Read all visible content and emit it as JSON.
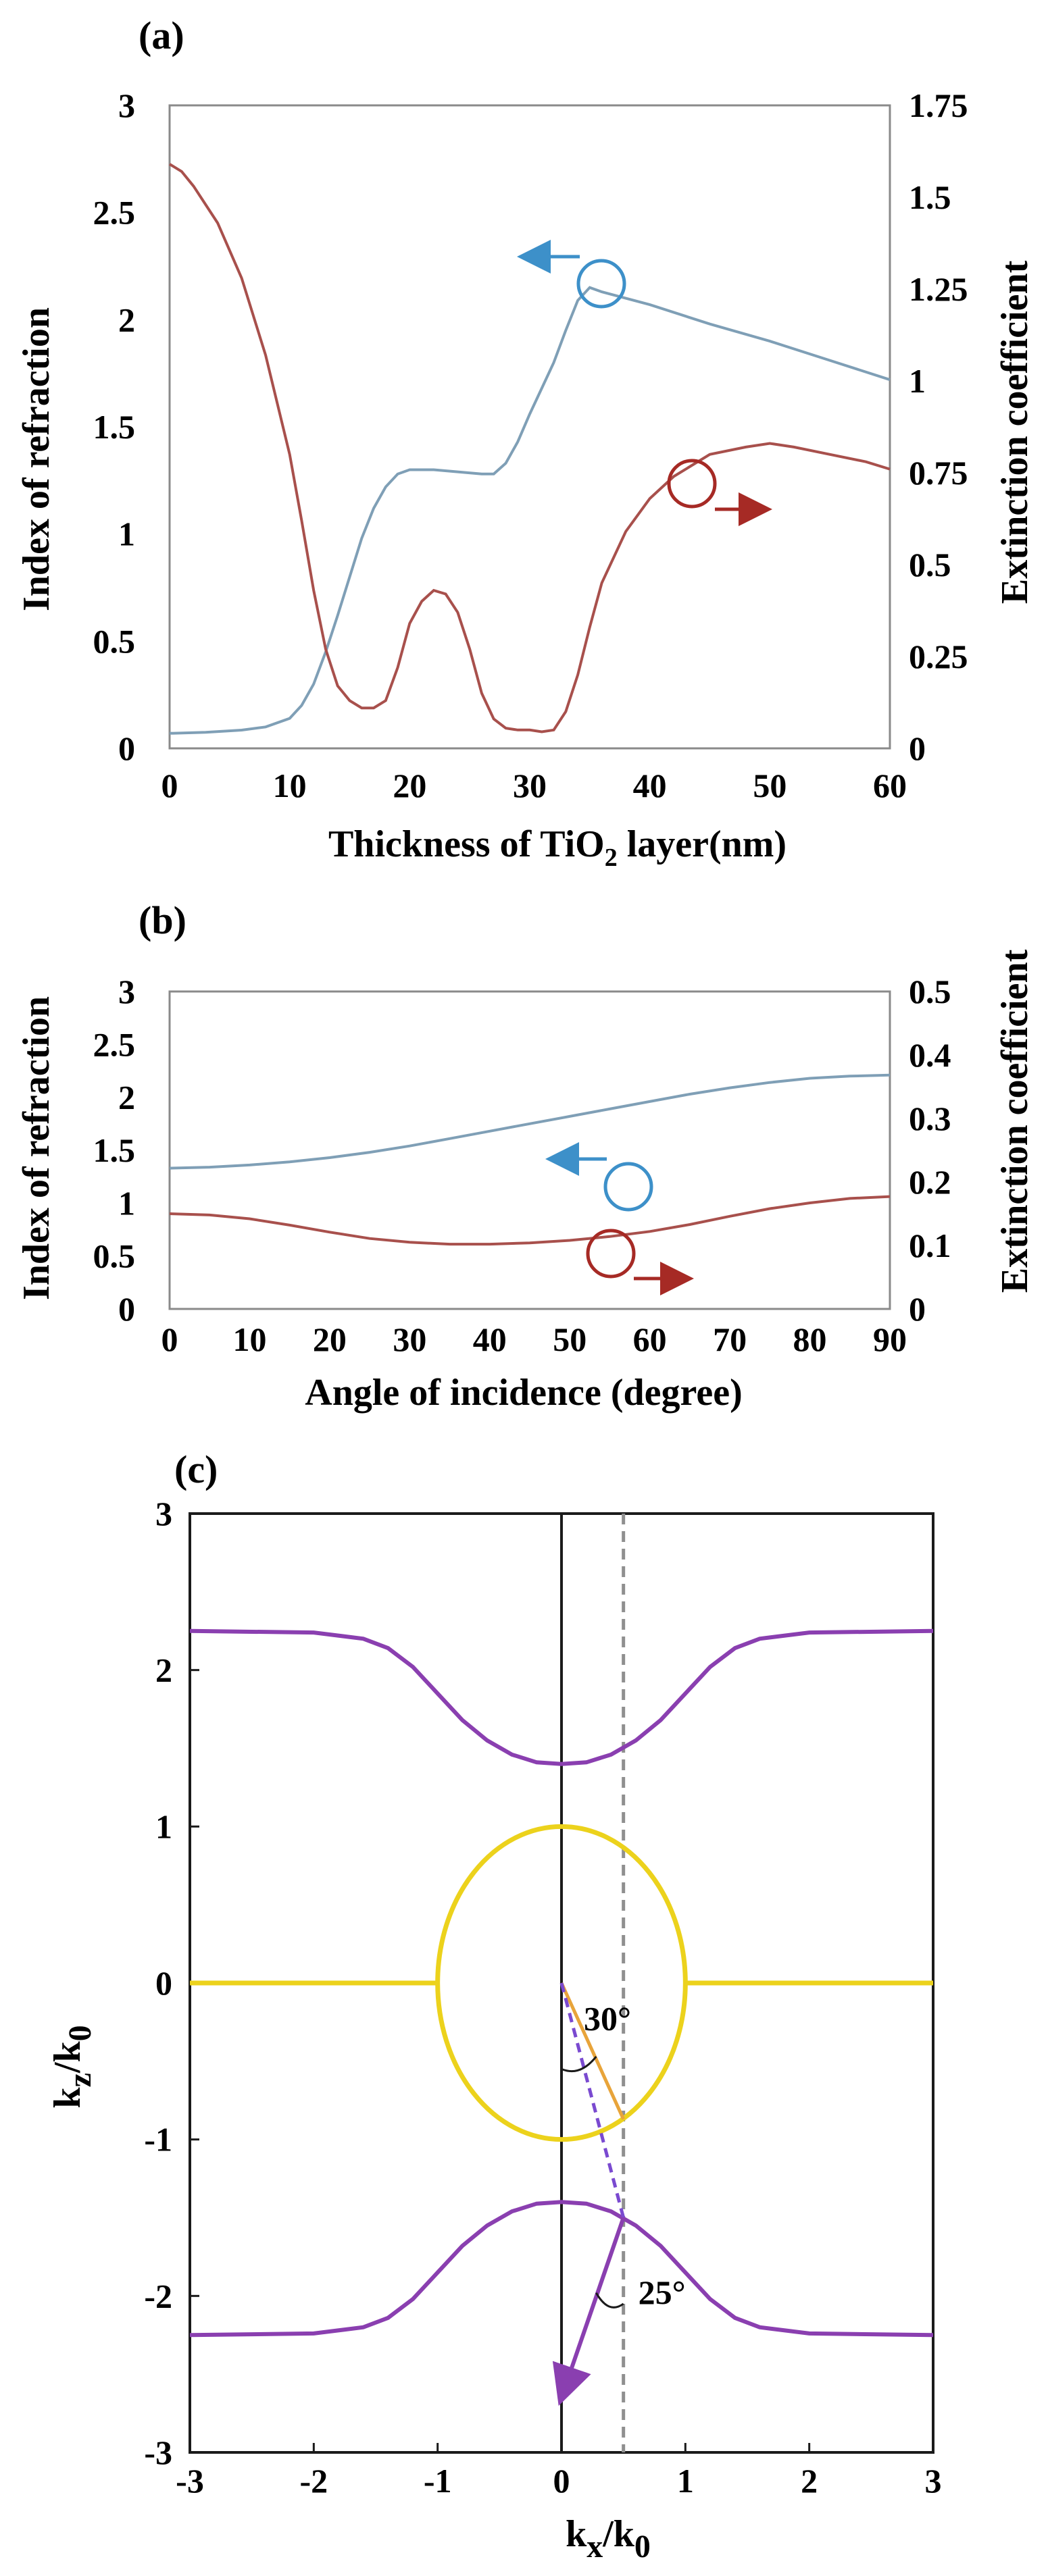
{
  "colors": {
    "blue_series": "#7f9fb6",
    "red_series": "#a8504c",
    "blue_marker": "#3d90c9",
    "red_marker": "#a62a25",
    "purple": "#8a3fb0",
    "yellow": "#ecd21c",
    "orange_ray": "#e8a43a",
    "dashed_purple": "#7a4ad0",
    "guide": "#8f8f8f"
  },
  "chart_data": [
    {
      "panel_label": "(a)",
      "type": "line",
      "xlabel_main": "Thickness of TiO",
      "xlabel_sub": "2",
      "xlabel_rest": " layer(nm)",
      "ylabel_left": "Index of refraction",
      "ylabel_right": "Extinction coefficient",
      "xlim": [
        0,
        60
      ],
      "ylim_left": [
        0,
        3
      ],
      "ylim_right": [
        0,
        1.75
      ],
      "x_ticks": [
        "0",
        "10",
        "20",
        "30",
        "40",
        "50",
        "60"
      ],
      "y_left_ticks": [
        "0",
        "0.5",
        "1",
        "1.5",
        "2",
        "2.5",
        "3"
      ],
      "y_right_ticks": [
        "0",
        "0.25",
        "0.5",
        "0.75",
        "1",
        "1.25",
        "1.5",
        "1.75"
      ],
      "series": [
        {
          "axis": "left",
          "x": [
            0,
            3,
            6,
            8,
            10,
            11,
            12,
            13,
            14,
            15,
            16,
            17,
            18,
            19,
            20,
            22,
            24,
            26,
            27,
            28,
            29,
            30,
            31,
            32,
            33,
            34,
            35,
            36,
            38,
            40,
            45,
            50,
            55,
            60
          ],
          "y": [
            0.07,
            0.075,
            0.085,
            0.1,
            0.14,
            0.2,
            0.3,
            0.45,
            0.62,
            0.8,
            0.98,
            1.12,
            1.22,
            1.28,
            1.3,
            1.3,
            1.29,
            1.28,
            1.28,
            1.33,
            1.43,
            1.56,
            1.68,
            1.8,
            1.95,
            2.09,
            2.15,
            2.13,
            2.1,
            2.07,
            1.98,
            1.9,
            1.81,
            1.72
          ]
        },
        {
          "axis": "right",
          "x": [
            0,
            1,
            2,
            4,
            6,
            8,
            10,
            11,
            12,
            13,
            14,
            15,
            16,
            17,
            18,
            19,
            20,
            21,
            22,
            23,
            24,
            25,
            26,
            27,
            28,
            29,
            30,
            31,
            32,
            33,
            34,
            35,
            36,
            38,
            40,
            42,
            45,
            48,
            50,
            52,
            55,
            58,
            60
          ],
          "y": [
            1.59,
            1.57,
            1.53,
            1.43,
            1.28,
            1.07,
            0.8,
            0.62,
            0.43,
            0.27,
            0.17,
            0.13,
            0.11,
            0.11,
            0.13,
            0.22,
            0.34,
            0.4,
            0.43,
            0.42,
            0.37,
            0.27,
            0.15,
            0.08,
            0.055,
            0.05,
            0.05,
            0.045,
            0.05,
            0.1,
            0.2,
            0.33,
            0.45,
            0.59,
            0.68,
            0.74,
            0.8,
            0.82,
            0.83,
            0.82,
            0.8,
            0.78,
            0.76
          ]
        }
      ]
    },
    {
      "panel_label": "(b)",
      "type": "line",
      "xlabel": "Angle of incidence (degree)",
      "ylabel_left": "Index of refraction",
      "ylabel_right": "Extinction coefficient",
      "xlim": [
        0,
        90
      ],
      "ylim_left": [
        0,
        3
      ],
      "ylim_right": [
        0,
        0.5
      ],
      "x_ticks": [
        "0",
        "10",
        "20",
        "30",
        "40",
        "50",
        "60",
        "70",
        "80",
        "90"
      ],
      "y_left_ticks": [
        "0",
        "0.5",
        "1",
        "1.5",
        "2",
        "2.5",
        "3"
      ],
      "y_right_ticks": [
        "0",
        "0.1",
        "0.2",
        "0.3",
        "0.4",
        "0.5"
      ],
      "series": [
        {
          "axis": "left",
          "x": [
            0,
            5,
            10,
            15,
            20,
            25,
            30,
            35,
            40,
            45,
            50,
            55,
            60,
            65,
            70,
            75,
            80,
            85,
            90
          ],
          "y": [
            1.33,
            1.34,
            1.36,
            1.39,
            1.43,
            1.48,
            1.54,
            1.61,
            1.68,
            1.75,
            1.82,
            1.89,
            1.96,
            2.03,
            2.09,
            2.14,
            2.18,
            2.2,
            2.21
          ]
        },
        {
          "axis": "right",
          "x": [
            0,
            5,
            10,
            15,
            20,
            25,
            30,
            35,
            40,
            45,
            50,
            55,
            60,
            65,
            70,
            75,
            80,
            85,
            90
          ],
          "y": [
            0.15,
            0.148,
            0.142,
            0.132,
            0.121,
            0.111,
            0.105,
            0.102,
            0.102,
            0.104,
            0.108,
            0.114,
            0.122,
            0.133,
            0.146,
            0.158,
            0.167,
            0.174,
            0.177
          ]
        }
      ]
    },
    {
      "panel_label": "(c)",
      "type": "line",
      "xlabel_main": "k",
      "xlabel_sub": "x",
      "xlabel_sep": "/k",
      "xlabel_sub2": "0",
      "ylabel_main": "k",
      "ylabel_sub": "z",
      "ylabel_sep": "/k",
      "ylabel_sub2": "0",
      "xlim": [
        -3,
        3
      ],
      "ylim": [
        -3,
        3
      ],
      "x_ticks": [
        "-3",
        "-2",
        "-1",
        "0",
        "1",
        "2",
        "3"
      ],
      "y_ticks": [
        "-3",
        "-2",
        "-1",
        "0",
        "1",
        "2",
        "3"
      ],
      "dashed_x": 0.5,
      "angle_labels": [
        "30°",
        "25°"
      ],
      "series": [
        {
          "name_internal": "upper_hyperbolic",
          "x": [
            -3,
            -2,
            -1.6,
            -1.4,
            -1.2,
            -1.0,
            -0.8,
            -0.6,
            -0.4,
            -0.2,
            0,
            0.2,
            0.4,
            0.6,
            0.8,
            1.0,
            1.2,
            1.4,
            1.6,
            2,
            3
          ],
          "y": [
            2.25,
            2.24,
            2.2,
            2.14,
            2.02,
            1.85,
            1.68,
            1.55,
            1.46,
            1.41,
            1.4,
            1.41,
            1.46,
            1.55,
            1.68,
            1.85,
            2.02,
            2.14,
            2.2,
            2.24,
            2.25
          ]
        },
        {
          "name_internal": "lower_hyperbolic",
          "x": [
            -3,
            -2,
            -1.6,
            -1.4,
            -1.2,
            -1.0,
            -0.8,
            -0.6,
            -0.4,
            -0.2,
            0,
            0.2,
            0.4,
            0.6,
            0.8,
            1.0,
            1.2,
            1.4,
            1.6,
            2,
            3
          ],
          "y": [
            -2.25,
            -2.24,
            -2.2,
            -2.14,
            -2.02,
            -1.85,
            -1.68,
            -1.55,
            -1.46,
            -1.41,
            -1.4,
            -1.41,
            -1.46,
            -1.55,
            -1.68,
            -1.85,
            -2.02,
            -2.14,
            -2.2,
            -2.24,
            -2.25
          ]
        }
      ]
    }
  ]
}
